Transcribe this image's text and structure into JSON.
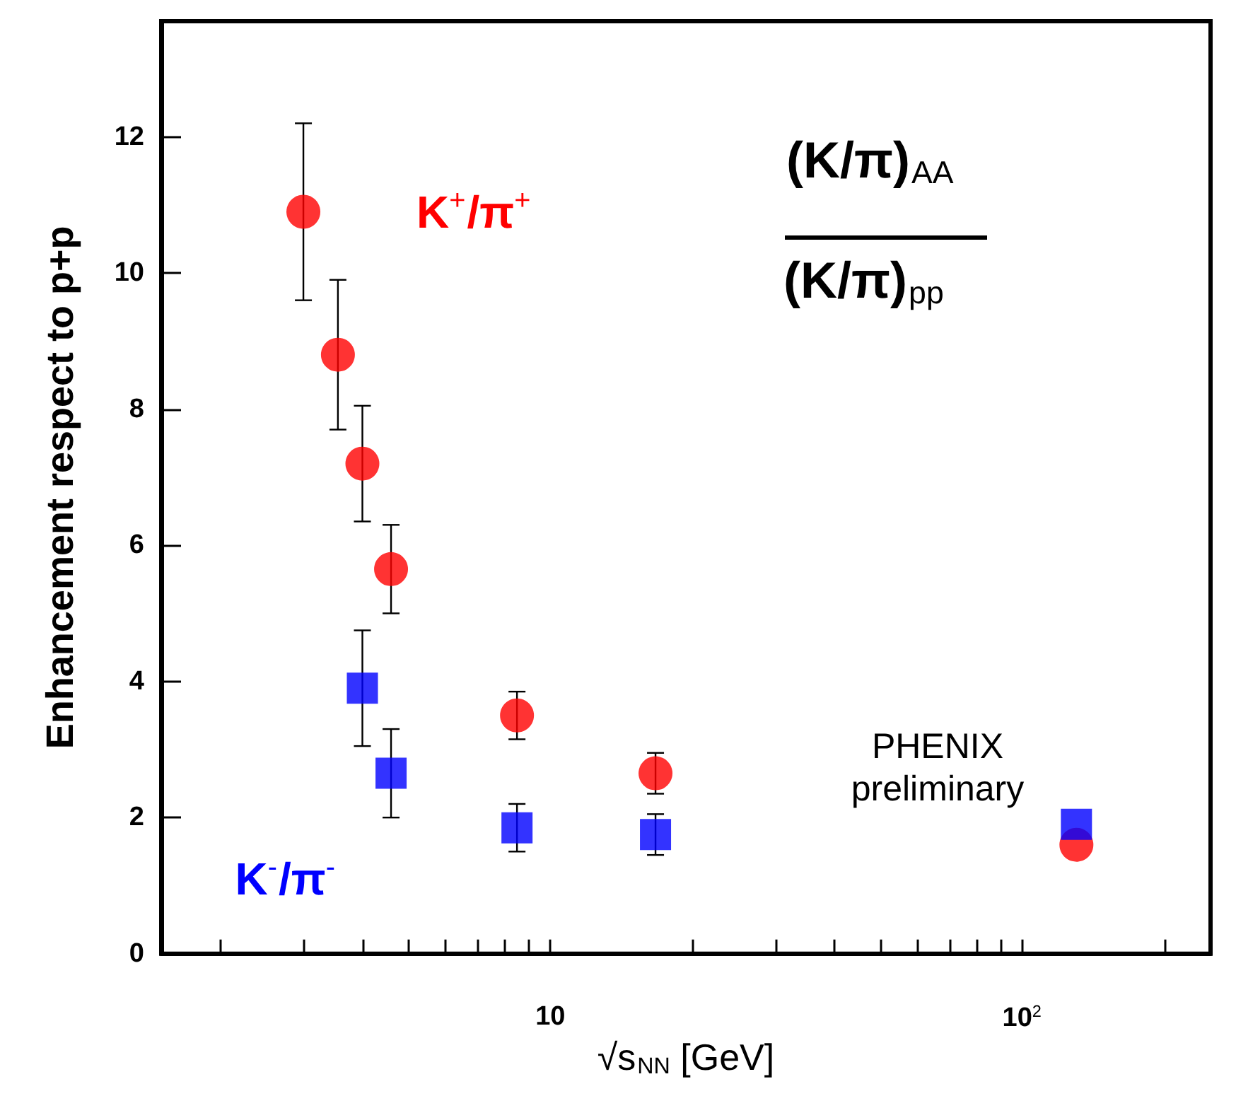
{
  "chart_data": {
    "type": "scatter",
    "xlabel": "√s$_{NN}$ [GeV]",
    "ylabel": "Enhancement respect to p+p",
    "log": "x",
    "xlim": [
      1.5,
      250
    ],
    "ylim": [
      0,
      13.7
    ],
    "xticks": [
      {
        "value": 2,
        "label": null
      },
      {
        "value": 3,
        "label": null
      },
      {
        "value": 4,
        "label": null
      },
      {
        "value": 5,
        "label": null
      },
      {
        "value": 6,
        "label": null
      },
      {
        "value": 7,
        "label": null
      },
      {
        "value": 8,
        "label": null
      },
      {
        "value": 9,
        "label": null
      },
      10,
      {
        "value": 20,
        "label": null
      },
      {
        "value": 30,
        "label": null
      },
      {
        "value": 40,
        "label": null
      },
      {
        "value": 50,
        "label": null
      },
      {
        "value": 60,
        "label": null
      },
      {
        "value": 70,
        "label": null
      },
      {
        "value": 80,
        "label": null
      },
      {
        "value": 90,
        "label": null
      },
      {
        "value": 100,
        "label": "10$^{2}$"
      },
      {
        "value": 200,
        "label": null
      }
    ],
    "yticks": [
      0,
      2,
      4,
      6,
      8,
      10,
      12
    ],
    "grid": false,
    "legend": false,
    "series": [
      {
        "name": "K$^{+}$/π$^{+}$",
        "color": "#ff0000",
        "marker": "circle",
        "x": [
          3.0,
          3.55,
          4.0,
          4.6,
          8.5,
          16.7,
          130
        ],
        "values": [
          10.9,
          8.8,
          7.2,
          5.65,
          3.5,
          2.65,
          1.6
        ],
        "errors": [
          1.3,
          1.1,
          0.85,
          0.65,
          0.35,
          0.3,
          null
        ]
      },
      {
        "name": "K$^{-}$/π$^{-}$",
        "color": "#0000ff",
        "marker": "square",
        "x": [
          4.0,
          4.6,
          8.5,
          16.7,
          130
        ],
        "values": [
          3.9,
          2.65,
          1.85,
          1.75,
          1.9
        ],
        "errors": [
          0.85,
          0.65,
          0.35,
          0.3,
          null
        ]
      }
    ],
    "annotations": [
      "(K/π)$_{AA}$",
      "(K/π)$_{pp}$",
      "PHENIX\npreliminary"
    ]
  }
}
